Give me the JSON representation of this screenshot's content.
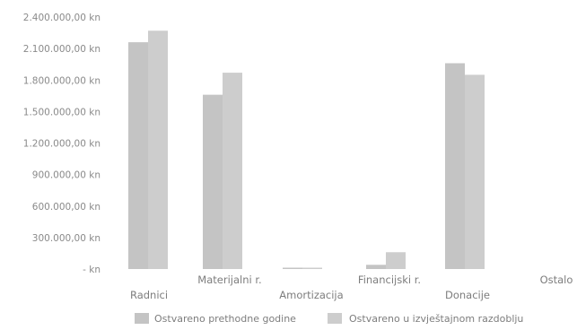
{
  "chart_data": {
    "type": "bar",
    "title": "",
    "xlabel": "",
    "ylabel": "",
    "categories": [
      "Radnici",
      "Materijalni r.",
      "Amortizacija",
      "Financijski r.",
      "Donacije",
      "Ostalo"
    ],
    "series": [
      {
        "name": "Ostvareno prethodne godine",
        "values": [
          2160000,
          1660000,
          10000,
          40000,
          1960000,
          0
        ],
        "color": "#c4c4c4"
      },
      {
        "name": "Ostvareno u izvještajnom razdoblju",
        "values": [
          2270000,
          1870000,
          10000,
          160000,
          1850000,
          0
        ],
        "color": "#cdcdcd"
      }
    ],
    "ylim": [
      0,
      2400000
    ],
    "yticks": [
      0,
      300000,
      600000,
      900000,
      1200000,
      1500000,
      1800000,
      2100000,
      2400000
    ],
    "ytick_labels": [
      "-   kn",
      "300.000,00 kn",
      "600.000,00 kn",
      "900.000,00 kn",
      "1.200.000,00 kn",
      "1.500.000,00 kn",
      "1.800.000,00 kn",
      "2.100.000,00 kn",
      "2.400.000,00 kn"
    ],
    "grid": false,
    "legend_position": "bottom"
  }
}
